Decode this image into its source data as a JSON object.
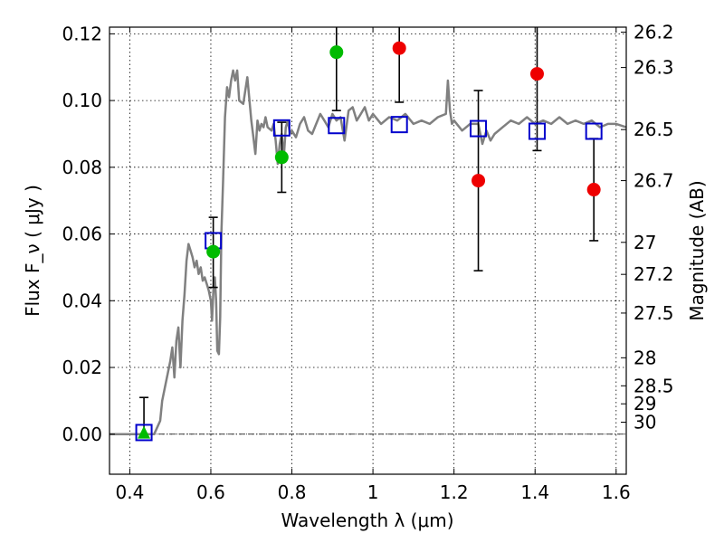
{
  "chart_data": {
    "type": "scatter",
    "xlabel": "Wavelength  λ (μm)",
    "ylabel": "Flux  F_ν  ( μJy )",
    "y2label": "Magnitude (AB)",
    "xlim": [
      0.35,
      1.625
    ],
    "ylim": [
      -0.012,
      0.122
    ],
    "grid": true,
    "xticks": [
      0.4,
      0.6,
      0.8,
      1.0,
      1.2,
      1.4,
      1.6
    ],
    "xtick_labels": [
      "0.4",
      "0.6",
      "0.8",
      "1",
      "1.2",
      "1.4",
      "1.6"
    ],
    "yticks": [
      0.0,
      0.02,
      0.04,
      0.06,
      0.08,
      0.1,
      0.12
    ],
    "ytick_labels": [
      "0.00",
      "0.02",
      "0.04",
      "0.06",
      "0.08",
      "0.10",
      "0.12"
    ],
    "y2ticks": [
      {
        "label": "26.2",
        "flux": 0.1205
      },
      {
        "label": "26.3",
        "flux": 0.1099
      },
      {
        "label": "26.5",
        "flux": 0.0913
      },
      {
        "label": "26.7",
        "flux": 0.076
      },
      {
        "label": "27",
        "flux": 0.0575
      },
      {
        "label": "27.2",
        "flux": 0.0479
      },
      {
        "label": "27.5",
        "flux": 0.0363
      },
      {
        "label": "28",
        "flux": 0.0229
      },
      {
        "label": "28.5",
        "flux": 0.0145
      },
      {
        "label": "29",
        "flux": 0.0091
      },
      {
        "label": "30",
        "flux": 0.0036
      }
    ],
    "model_sed": {
      "color": "#808080",
      "x": [
        0.35,
        0.46,
        0.475,
        0.48,
        0.49,
        0.5,
        0.505,
        0.51,
        0.515,
        0.52,
        0.525,
        0.53,
        0.535,
        0.54,
        0.545,
        0.55,
        0.555,
        0.56,
        0.565,
        0.57,
        0.575,
        0.58,
        0.585,
        0.59,
        0.595,
        0.6,
        0.603,
        0.607,
        0.61,
        0.613,
        0.616,
        0.62,
        0.623,
        0.626,
        0.63,
        0.635,
        0.64,
        0.645,
        0.65,
        0.655,
        0.66,
        0.665,
        0.67,
        0.68,
        0.69,
        0.7,
        0.705,
        0.71,
        0.715,
        0.72,
        0.725,
        0.73,
        0.735,
        0.74,
        0.75,
        0.755,
        0.76,
        0.765,
        0.77,
        0.775,
        0.78,
        0.785,
        0.79,
        0.795,
        0.8,
        0.81,
        0.82,
        0.83,
        0.84,
        0.85,
        0.86,
        0.87,
        0.88,
        0.89,
        0.9,
        0.91,
        0.92,
        0.93,
        0.94,
        0.95,
        0.96,
        0.97,
        0.98,
        0.99,
        1.0,
        1.02,
        1.04,
        1.06,
        1.08,
        1.1,
        1.12,
        1.14,
        1.16,
        1.18,
        1.185,
        1.19,
        1.195,
        1.2,
        1.22,
        1.24,
        1.26,
        1.27,
        1.28,
        1.29,
        1.3,
        1.32,
        1.34,
        1.36,
        1.38,
        1.4,
        1.42,
        1.44,
        1.46,
        1.48,
        1.5,
        1.52,
        1.54,
        1.56,
        1.58,
        1.6,
        1.625
      ],
      "y": [
        0.0,
        0.0,
        0.004,
        0.01,
        0.016,
        0.022,
        0.026,
        0.017,
        0.028,
        0.032,
        0.02,
        0.034,
        0.042,
        0.052,
        0.057,
        0.055,
        0.053,
        0.05,
        0.052,
        0.048,
        0.05,
        0.046,
        0.047,
        0.045,
        0.043,
        0.04,
        0.034,
        0.045,
        0.047,
        0.04,
        0.025,
        0.024,
        0.035,
        0.06,
        0.075,
        0.095,
        0.104,
        0.101,
        0.106,
        0.109,
        0.106,
        0.109,
        0.1,
        0.099,
        0.107,
        0.094,
        0.089,
        0.084,
        0.094,
        0.091,
        0.093,
        0.092,
        0.095,
        0.092,
        0.091,
        0.093,
        0.088,
        0.081,
        0.087,
        0.09,
        0.083,
        0.092,
        0.094,
        0.09,
        0.091,
        0.089,
        0.093,
        0.095,
        0.091,
        0.09,
        0.093,
        0.096,
        0.094,
        0.092,
        0.096,
        0.094,
        0.095,
        0.088,
        0.097,
        0.098,
        0.094,
        0.096,
        0.098,
        0.094,
        0.096,
        0.093,
        0.095,
        0.094,
        0.096,
        0.093,
        0.094,
        0.093,
        0.095,
        0.096,
        0.106,
        0.097,
        0.093,
        0.094,
        0.091,
        0.093,
        0.093,
        0.087,
        0.091,
        0.088,
        0.09,
        0.092,
        0.094,
        0.093,
        0.095,
        0.093,
        0.094,
        0.093,
        0.095,
        0.093,
        0.094,
        0.093,
        0.094,
        0.092,
        0.093,
        0.093,
        0.092
      ]
    },
    "model_bands": {
      "marker": "open-square",
      "color": "#0000cc",
      "x": [
        0.435,
        0.606,
        0.775,
        0.91,
        1.065,
        1.26,
        1.405,
        1.545
      ],
      "y": [
        0.0005,
        0.058,
        0.0918,
        0.0925,
        0.0928,
        0.0916,
        0.0908,
        0.0908
      ]
    },
    "observed_detections": {
      "marker": "filled-circle",
      "color": "#00bb00",
      "x": [
        0.606,
        0.775,
        0.91
      ],
      "y": [
        0.0547,
        0.083,
        0.1145
      ],
      "yerr_low": [
        0.0107,
        0.0105,
        0.0175
      ],
      "yerr_high": [
        0.0103,
        0.0105,
        0.0175
      ]
    },
    "observed_upper_limit": {
      "marker": "triangle",
      "color": "#00bb00",
      "x": [
        0.435
      ],
      "y": [
        0.0003
      ],
      "yerr_low": [
        0.0
      ],
      "yerr_high": [
        0.0107
      ]
    },
    "observed_nondetections": {
      "marker": "filled-circle",
      "color": "#ee0000",
      "x": [
        1.065,
        1.26,
        1.405,
        1.545
      ],
      "y": [
        0.1157,
        0.076,
        0.108,
        0.0733
      ],
      "yerr_low": [
        0.0162,
        0.027,
        0.023,
        0.0153
      ],
      "yerr_high": [
        0.0162,
        0.027,
        0.023,
        0.0153
      ]
    },
    "reference_line": {
      "y": 0.0,
      "style": "dash-dot",
      "color": "#000000"
    }
  }
}
